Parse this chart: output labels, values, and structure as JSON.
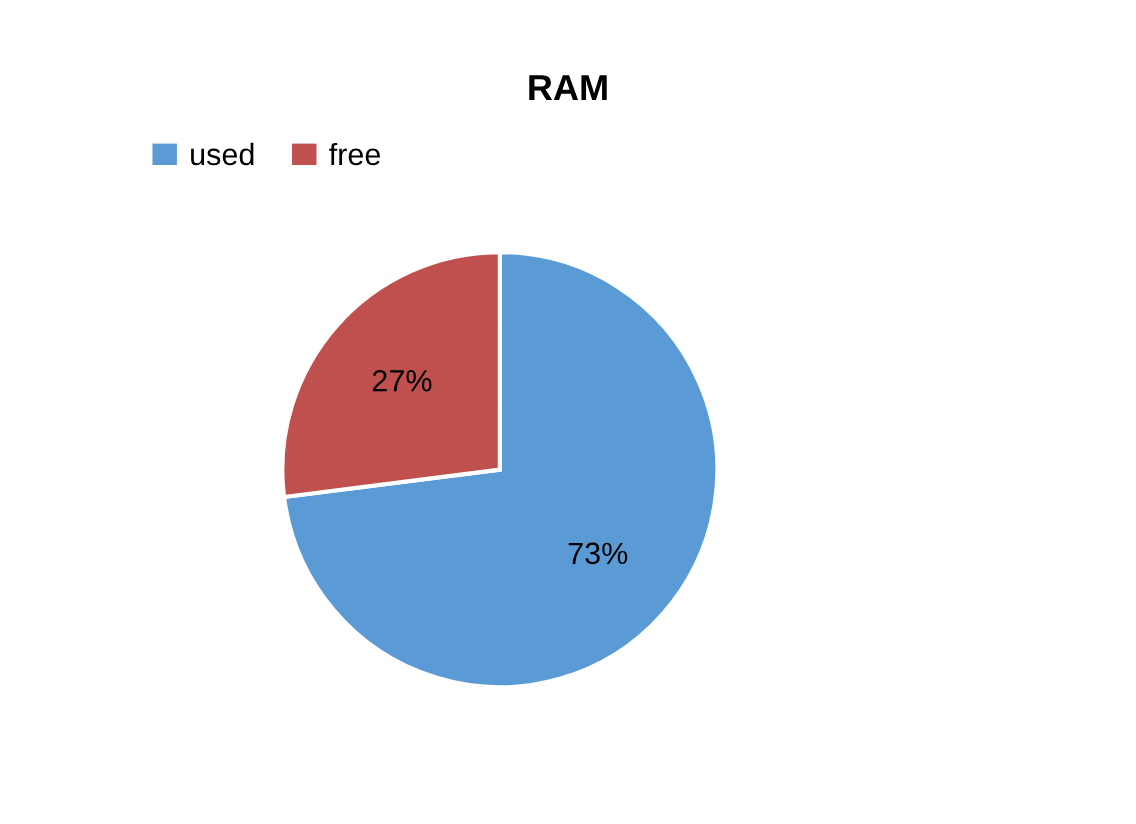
{
  "chart_data": {
    "type": "pie",
    "title": "RAM",
    "categories": [
      "used",
      "free"
    ],
    "values": [
      73,
      27
    ],
    "colors": [
      "#5b9bd5",
      "#c0504d"
    ],
    "value_labels": [
      "73%",
      "27%"
    ],
    "legend": "top left"
  }
}
